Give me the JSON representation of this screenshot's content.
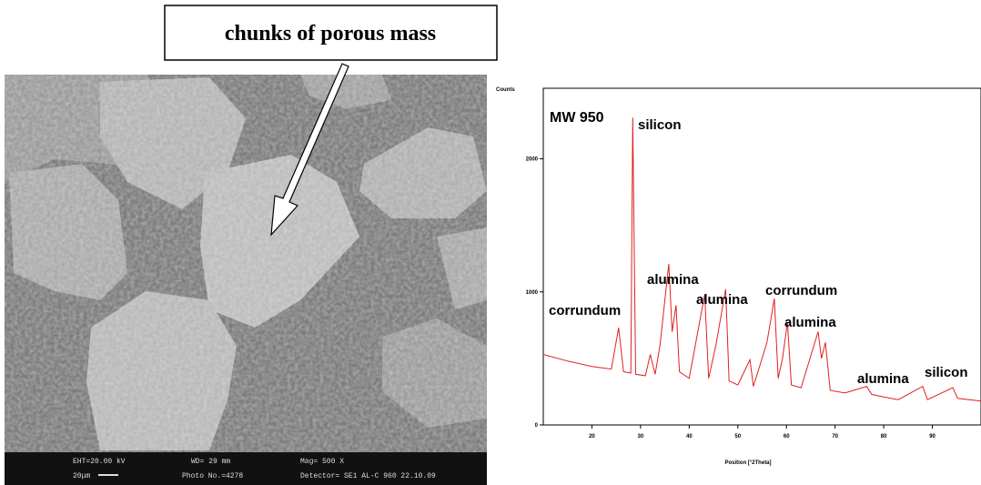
{
  "callout": {
    "text": "chunks of porous mass"
  },
  "sem_footer": {
    "items": [
      "EHT=20.00 kV",
      "WD= 29 mm",
      "Mag= 500 X",
      "20μm",
      "Photo No.=4278",
      "Detector= SE1 AL-C 960 22.10.09"
    ]
  },
  "chart_data": {
    "type": "line",
    "title": "MW 950",
    "y_label": "Counts",
    "x_label": "Position [°2Theta]",
    "x": [
      10,
      15,
      20,
      24,
      25.5,
      26.5,
      28,
      28.4,
      29,
      31,
      32,
      33,
      34,
      35.8,
      36.5,
      37.3,
      38,
      40,
      43.2,
      44,
      45.5,
      47.5,
      48.2,
      50,
      52.5,
      53.2,
      56,
      57.5,
      58.3,
      59.2,
      60.2,
      61,
      63,
      66.5,
      67.2,
      68,
      69,
      72,
      76.5,
      77.5,
      80,
      83,
      88,
      89,
      94.2,
      95.2,
      100
    ],
    "series": [
      {
        "name": "MW 950",
        "color": "#e02020",
        "values": [
          530,
          480,
          440,
          420,
          730,
          400,
          390,
          2310,
          380,
          370,
          530,
          380,
          600,
          1210,
          700,
          900,
          400,
          350,
          980,
          350,
          600,
          1020,
          330,
          300,
          490,
          290,
          620,
          950,
          350,
          500,
          770,
          300,
          280,
          700,
          500,
          620,
          260,
          240,
          290,
          230,
          210,
          190,
          290,
          190,
          280,
          200,
          180
        ]
      }
    ],
    "annotations": [
      "silicon",
      "corrundum",
      "alumina",
      "alumina",
      "corrundum",
      "alumina",
      "alumina",
      "silicon"
    ],
    "xlim": [
      10,
      100
    ],
    "ylim": [
      0,
      2530
    ],
    "xticks": [
      20,
      30,
      40,
      50,
      60,
      70,
      80,
      90
    ],
    "yticks": [
      0,
      1000,
      2000
    ]
  }
}
